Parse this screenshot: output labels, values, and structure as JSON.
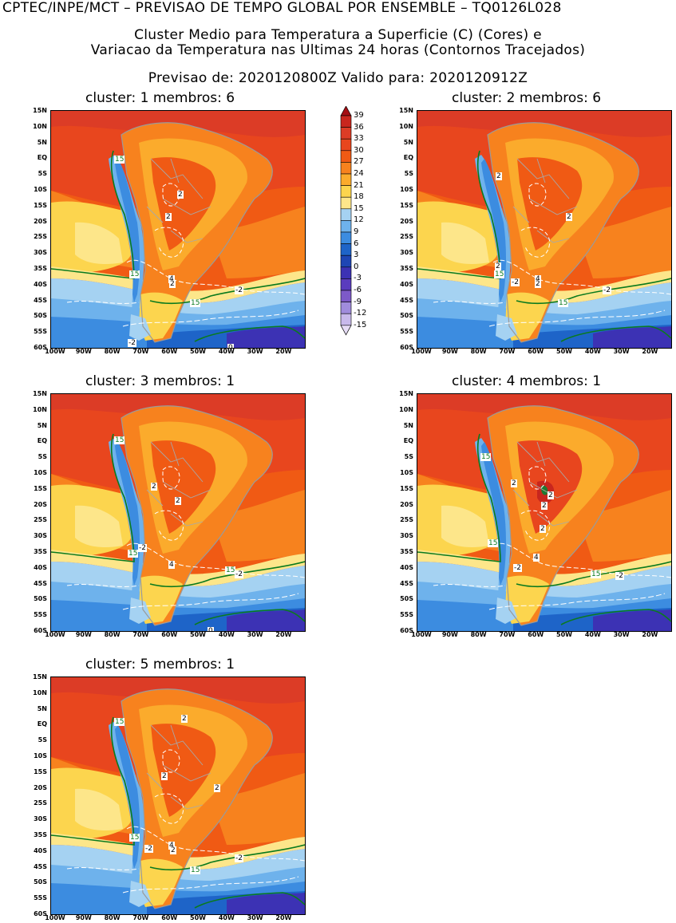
{
  "header": {
    "line1": "CPTEC/INPE/MCT – PREVISAO DE TEMPO GLOBAL POR ENSEMBLE – TQ0126L028",
    "line2": "Cluster Medio para Temperatura a Superficie (C) (Cores) e",
    "line3": "Variacao da Temperatura nas Ultimas 24 horas (Contornos Tracejados)",
    "line4": "Previsao de: 2020120800Z    Valido para: 2020120912Z"
  },
  "panels": [
    {
      "title": "cluster: 1   membros: 6",
      "labels": [
        "15",
        "2",
        "2",
        "4",
        "2",
        "15",
        "15",
        "-2",
        "-2",
        "0"
      ]
    },
    {
      "title": "cluster: 2   membros: 6",
      "labels": [
        "2",
        "2",
        "2",
        "15",
        "-2",
        "4",
        "2",
        "15",
        "-2"
      ]
    },
    {
      "title": "cluster: 3   membros: 1",
      "labels": [
        "15",
        "2",
        "2",
        "15",
        "-2",
        "4",
        "15",
        "-2",
        "0"
      ]
    },
    {
      "title": "cluster: 4   membros: 1",
      "labels": [
        "15",
        "2",
        "2",
        "2",
        "2",
        "4",
        "15",
        "-2",
        "15",
        "-2"
      ]
    },
    {
      "title": "cluster: 5   membros: 1",
      "labels": [
        "15",
        "2",
        "2",
        "2",
        "15",
        "-2",
        "4",
        "2",
        "15",
        "-2"
      ]
    }
  ],
  "lat_ticks": [
    "15N",
    "10N",
    "5N",
    "EQ",
    "5S",
    "10S",
    "15S",
    "20S",
    "25S",
    "30S",
    "35S",
    "40S",
    "45S",
    "50S",
    "55S",
    "60S"
  ],
  "lon_ticks": [
    "100W",
    "90W",
    "80W",
    "70W",
    "60W",
    "50W",
    "40W",
    "30W",
    "20W"
  ],
  "colorbar": {
    "levels": [
      "39",
      "36",
      "33",
      "30",
      "27",
      "24",
      "21",
      "18",
      "15",
      "12",
      "9",
      "6",
      "3",
      "0",
      "-3",
      "-6",
      "-9",
      "-12",
      "-15"
    ],
    "colors": [
      "#a50e14",
      "#c8261e",
      "#dc3c26",
      "#e8461e",
      "#f05a14",
      "#f7821e",
      "#fbab2c",
      "#fcd54e",
      "#fde68a",
      "#a5d2f2",
      "#6eb2ec",
      "#3c8ce0",
      "#1e64c8",
      "#1e46b4",
      "#3c32b4",
      "#5a3cbe",
      "#7d5ac8",
      "#a08cdc",
      "#c8b9eb",
      "#e6dcf5"
    ]
  }
}
